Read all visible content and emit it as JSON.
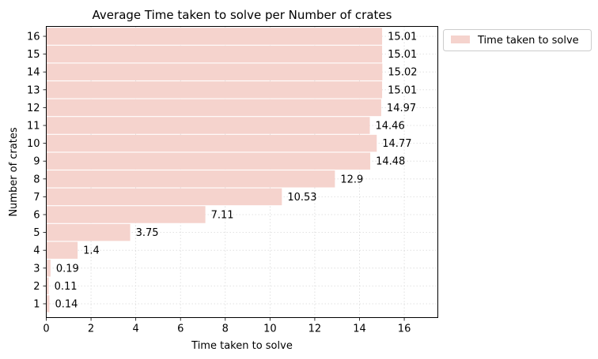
{
  "chart_data": {
    "type": "bar",
    "orientation": "horizontal",
    "title": "Average Time taken to solve per Number of crates",
    "xlabel": "Time taken to solve",
    "ylabel": "Number of crates",
    "xlim": [
      0,
      17.5
    ],
    "xticks": [
      0,
      2,
      4,
      6,
      8,
      10,
      12,
      14,
      16
    ],
    "grid": true,
    "legend_position": "outside-top-right",
    "bar_color": "#f5d3cd",
    "categories": [
      "1",
      "2",
      "3",
      "4",
      "5",
      "6",
      "7",
      "8",
      "9",
      "10",
      "11",
      "12",
      "13",
      "14",
      "15",
      "16"
    ],
    "series": [
      {
        "name": "Time taken to solve",
        "values": [
          0.14,
          0.11,
          0.19,
          1.4,
          3.75,
          7.11,
          10.53,
          12.9,
          14.48,
          14.77,
          14.46,
          14.97,
          15.01,
          15.02,
          15.01,
          15.01
        ],
        "labels": [
          "0.14",
          "0.11",
          "0.19",
          "1.4",
          "3.75",
          "7.11",
          "10.53",
          "12.9",
          "14.48",
          "14.77",
          "14.46",
          "14.97",
          "15.01",
          "15.02",
          "15.01",
          "15.01"
        ]
      }
    ]
  }
}
